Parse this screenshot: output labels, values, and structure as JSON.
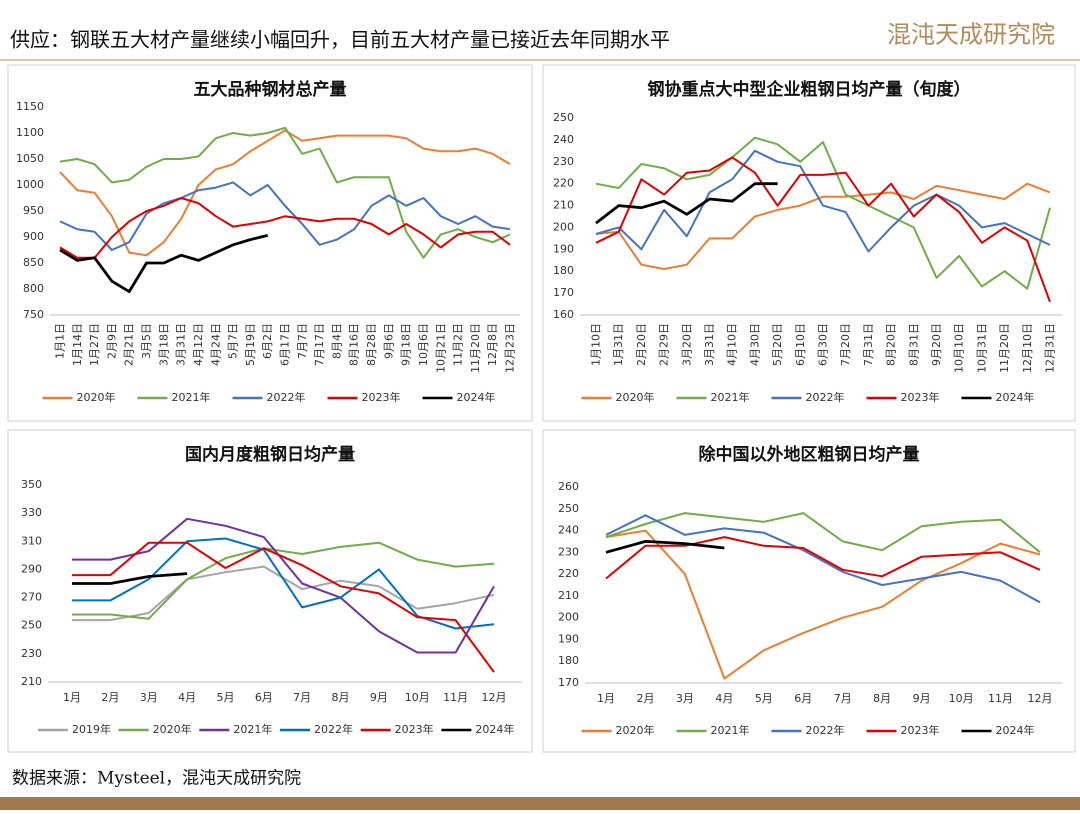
{
  "header": {
    "title": "供应：钢联五大材产量继续小幅回升，目前五大材产量已接近去年同期水平",
    "logo": "混沌天成研究院"
  },
  "footer": {
    "source": "数据来源：Mysteel，混沌天成研究院"
  },
  "chart_data": [
    {
      "type": "line",
      "title": "五大品种钢材总产量",
      "categories": [
        "1月1日",
        "1月14日",
        "1月27日",
        "2月9日",
        "2月21日",
        "3月5日",
        "3月18日",
        "3月31日",
        "4月12日",
        "4月24日",
        "5月7日",
        "5月19日",
        "6月2日",
        "6月17日",
        "7月7日",
        "7月17日",
        "8月4日",
        "8月16日",
        "8月28日",
        "9月6日",
        "9月18日",
        "10月6日",
        "10月21日",
        "11月2日",
        "11月20日",
        "12月8日",
        "12月23日"
      ],
      "ylim": [
        750,
        1150
      ],
      "yticks": [
        750,
        800,
        850,
        900,
        950,
        1000,
        1050,
        1100,
        1150
      ],
      "legend": "bottom",
      "series": [
        {
          "name": "2020年",
          "color": "#ed7d31",
          "values": [
            1025,
            990,
            985,
            940,
            870,
            865,
            890,
            935,
            1000,
            1030,
            1040,
            1065,
            1085,
            1105,
            1085,
            1090,
            1095,
            1095,
            1095,
            1095,
            1090,
            1070,
            1065,
            1065,
            1070,
            1060,
            1040
          ]
        },
        {
          "name": "2021年",
          "color": "#70ad47",
          "values": [
            1045,
            1050,
            1040,
            1005,
            1010,
            1035,
            1050,
            1050,
            1055,
            1090,
            1100,
            1095,
            1100,
            1110,
            1060,
            1070,
            1005,
            1015,
            1015,
            1015,
            910,
            860,
            905,
            915,
            900,
            890,
            905
          ]
        },
        {
          "name": "2022年",
          "color": "#4472c4",
          "values": [
            930,
            915,
            910,
            875,
            890,
            945,
            965,
            975,
            990,
            995,
            1005,
            980,
            1000,
            960,
            925,
            885,
            895,
            915,
            960,
            980,
            960,
            975,
            940,
            925,
            940,
            920,
            915
          ]
        },
        {
          "name": "2023年",
          "color": "#e00000",
          "values": [
            880,
            860,
            860,
            900,
            930,
            950,
            960,
            975,
            965,
            940,
            920,
            925,
            930,
            940,
            935,
            930,
            935,
            935,
            925,
            905,
            925,
            905,
            880,
            905,
            910,
            910,
            885
          ]
        },
        {
          "name": "2024年",
          "color": "#000000",
          "values": [
            875,
            855,
            860,
            815,
            795,
            850,
            850,
            865,
            855,
            870,
            885,
            895,
            903,
            null,
            null,
            null,
            null,
            null,
            null,
            null,
            null,
            null,
            null,
            null,
            null,
            null,
            null
          ]
        }
      ]
    },
    {
      "type": "line",
      "title": "钢协重点大中型企业粗钢日均产量（旬度）",
      "categories": [
        "1月10日",
        "1月31日",
        "2月20日",
        "2月29日",
        "3月20日",
        "3月31日",
        "4月10日",
        "4月30日",
        "5月20日",
        "6月10日",
        "6月30日",
        "7月20日",
        "7月31日",
        "8月20日",
        "8月31日",
        "9月20日",
        "10月10日",
        "10月31日",
        "11月20日",
        "12月10日",
        "12月31日"
      ],
      "ylim": [
        160,
        250
      ],
      "yticks": [
        160,
        170,
        180,
        190,
        200,
        210,
        220,
        230,
        240,
        250
      ],
      "legend": "bottom",
      "series": [
        {
          "name": "2020年",
          "color": "#ed7d31",
          "values": [
            197,
            198,
            183,
            181,
            183,
            195,
            195,
            205,
            208,
            210,
            214,
            214,
            215,
            216,
            213,
            219,
            217,
            215,
            213,
            220,
            216
          ]
        },
        {
          "name": "2021年",
          "color": "#70ad47",
          "values": [
            220,
            218,
            229,
            227,
            222,
            224,
            232,
            241,
            238,
            230,
            239,
            215,
            210,
            205,
            200,
            177,
            187,
            173,
            180,
            172,
            209
          ]
        },
        {
          "name": "2022年",
          "color": "#4472c4",
          "values": [
            197,
            200,
            190,
            208,
            196,
            216,
            222,
            235,
            230,
            228,
            210,
            207,
            189,
            200,
            210,
            215,
            210,
            200,
            202,
            197,
            192
          ]
        },
        {
          "name": "2023年",
          "color": "#e00000",
          "values": [
            193,
            198,
            222,
            215,
            225,
            226,
            232,
            225,
            210,
            224,
            224,
            225,
            210,
            220,
            205,
            215,
            207,
            193,
            200,
            194,
            166
          ]
        },
        {
          "name": "2024年",
          "color": "#000000",
          "values": [
            202,
            210,
            209,
            212,
            206,
            213,
            212,
            220,
            220,
            null,
            null,
            null,
            null,
            null,
            null,
            null,
            null,
            null,
            null,
            null,
            null
          ]
        }
      ]
    },
    {
      "type": "line",
      "title": "国内月度粗钢日均产量",
      "categories": [
        "1月",
        "2月",
        "3月",
        "4月",
        "5月",
        "6月",
        "7月",
        "8月",
        "9月",
        "10月",
        "11月",
        "12月"
      ],
      "ylim": [
        210,
        350
      ],
      "yticks": [
        210,
        230,
        250,
        270,
        290,
        310,
        330,
        350
      ],
      "legend": "bottom",
      "series": [
        {
          "name": "2019年",
          "color": "#a5a5a5",
          "values": [
            254,
            254,
            259,
            283,
            288,
            292,
            276,
            282,
            278,
            262,
            266,
            272
          ]
        },
        {
          "name": "2020年",
          "color": "#70ad47",
          "values": [
            258,
            258,
            255,
            283,
            298,
            305,
            301,
            306,
            309,
            297,
            292,
            294
          ]
        },
        {
          "name": "2021年",
          "color": "#7030a0",
          "values": [
            297,
            297,
            303,
            326,
            321,
            313,
            280,
            270,
            246,
            231,
            231,
            278
          ]
        },
        {
          "name": "2022年",
          "color": "#0070c0",
          "values": [
            268,
            268,
            283,
            310,
            312,
            304,
            263,
            270,
            290,
            257,
            248,
            251
          ]
        },
        {
          "name": "2023年",
          "color": "#e00000",
          "values": [
            286,
            286,
            309,
            309,
            291,
            305,
            293,
            278,
            273,
            256,
            254,
            217
          ]
        },
        {
          "name": "2024年",
          "color": "#000000",
          "values": [
            280,
            280,
            285,
            287,
            null,
            null,
            null,
            null,
            null,
            null,
            null,
            null
          ]
        }
      ]
    },
    {
      "type": "line",
      "title": "除中国以外地区粗钢日均产量",
      "categories": [
        "1月",
        "2月",
        "3月",
        "4月",
        "5月",
        "6月",
        "7月",
        "8月",
        "9月",
        "10月",
        "11月",
        "12月"
      ],
      "ylim": [
        170,
        260
      ],
      "yticks": [
        170,
        180,
        190,
        200,
        210,
        220,
        230,
        240,
        250,
        260
      ],
      "legend": "bottom",
      "series": [
        {
          "name": "2020年",
          "color": "#ed7d31",
          "values": [
            237,
            240,
            220,
            172,
            185,
            193,
            200,
            205,
            217,
            225,
            234,
            229
          ]
        },
        {
          "name": "2021年",
          "color": "#70ad47",
          "values": [
            237,
            243,
            248,
            246,
            244,
            248,
            235,
            231,
            242,
            244,
            245,
            230
          ]
        },
        {
          "name": "2022年",
          "color": "#4472c4",
          "values": [
            238,
            247,
            238,
            241,
            239,
            231,
            221,
            215,
            218,
            221,
            217,
            207
          ]
        },
        {
          "name": "2023年",
          "color": "#e00000",
          "values": [
            218,
            233,
            233,
            237,
            233,
            232,
            222,
            219,
            228,
            229,
            230,
            222
          ]
        },
        {
          "name": "2024年",
          "color": "#000000",
          "values": [
            230,
            235,
            234,
            232,
            null,
            null,
            null,
            null,
            null,
            null,
            null,
            null
          ]
        }
      ]
    }
  ]
}
